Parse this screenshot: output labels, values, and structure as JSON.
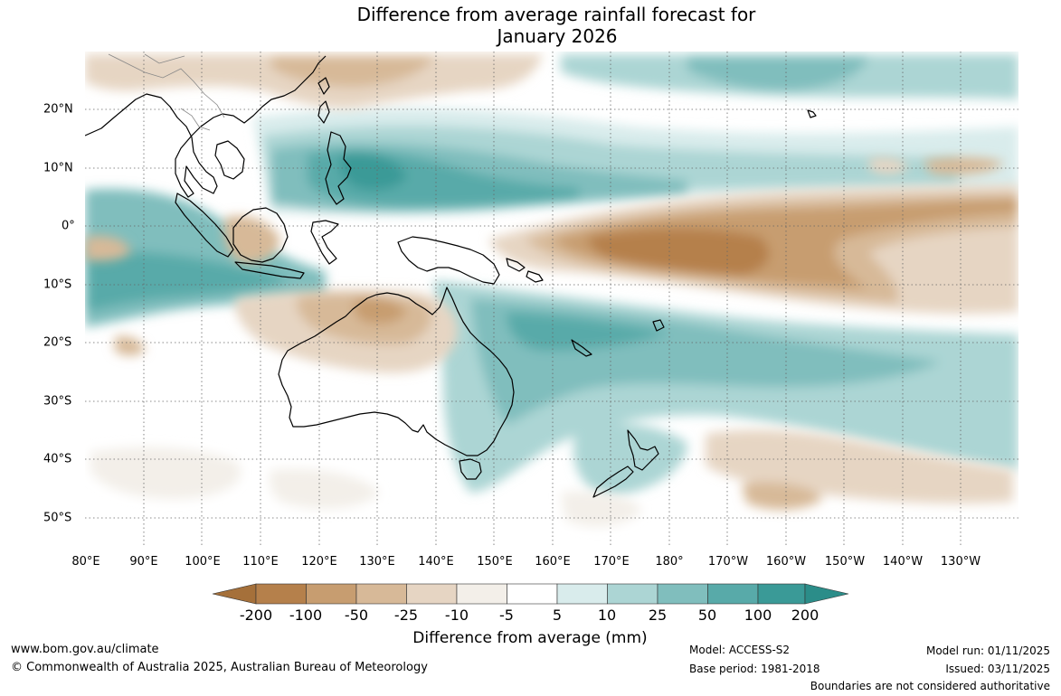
{
  "title": {
    "line1": "Difference from average rainfall forecast for",
    "line2": "January 2026"
  },
  "map": {
    "longitude_labels": [
      "80°E",
      "90°E",
      "100°E",
      "110°E",
      "120°E",
      "130°E",
      "140°E",
      "150°E",
      "160°E",
      "170°E",
      "180°",
      "170°W",
      "160°W",
      "150°W",
      "140°W",
      "130°W"
    ],
    "latitude_labels": [
      "20°N",
      "10°N",
      "0°",
      "10°S",
      "20°S",
      "30°S",
      "40°S",
      "50°S"
    ],
    "features": [
      "Australia",
      "Indonesia",
      "Papua New Guinea",
      "New Zealand",
      "Pacific Ocean",
      "Indian Ocean"
    ],
    "pattern_summary": "Drier than average equatorial Pacific band; wetter than average north-west Pacific, Indian Ocean and eastern Australia"
  },
  "legend": {
    "labels": [
      "-200",
      "-100",
      "-50",
      "-25",
      "-10",
      "-5",
      "5",
      "10",
      "25",
      "50",
      "100",
      "200"
    ],
    "colors": [
      "#a5703a",
      "#b5804b",
      "#c79d70",
      "#d7b998",
      "#e6d5c3",
      "#f3efe9",
      "#ffffff",
      "#d9ecec",
      "#acd5d4",
      "#80bebd",
      "#58aaa9",
      "#3a9a97",
      "#2b8d89"
    ],
    "title": "Difference from average (mm)"
  },
  "footer": {
    "website": "www.bom.gov.au/climate",
    "copyright": "© Commonwealth of Australia 2025, Australian Bureau of Meteorology",
    "model": "Model: ACCESS-S2",
    "base_period": "Base period: 1981-2018",
    "model_run": "Model run: 01/11/2025",
    "issued": "Issued: 03/11/2025",
    "boundaries_note": "Boundaries are not considered authoritative"
  }
}
